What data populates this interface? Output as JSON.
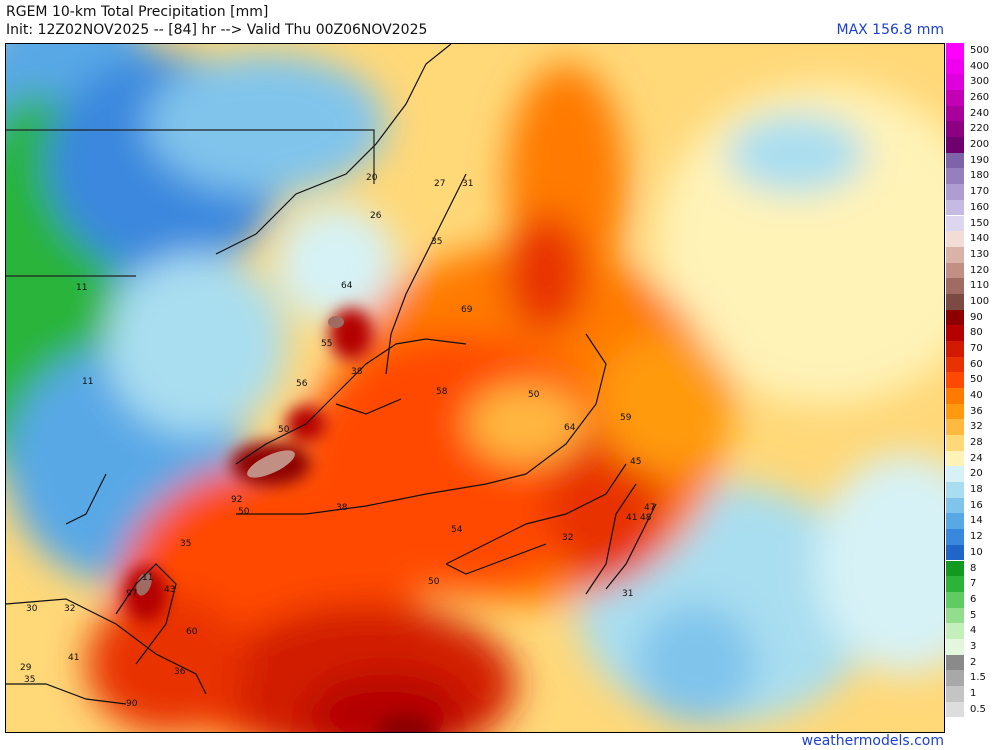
{
  "header": {
    "title": "RGEM 10-km Total Precipitation [mm]",
    "init": "Init: 12Z02NOV2025 -- [84] hr --> Valid Thu 00Z06NOV2025",
    "max": "MAX 156.8 mm"
  },
  "footer": {
    "site": "weathermodels.com"
  },
  "legend": {
    "items": [
      {
        "label": "500",
        "color": "#ff00ff"
      },
      {
        "label": "400",
        "color": "#ee00ee"
      },
      {
        "label": "300",
        "color": "#dd00dd"
      },
      {
        "label": "260",
        "color": "#c400b4"
      },
      {
        "label": "240",
        "color": "#a8009a"
      },
      {
        "label": "220",
        "color": "#8b0082"
      },
      {
        "label": "200",
        "color": "#6e0070"
      },
      {
        "label": "190",
        "color": "#7e63a8"
      },
      {
        "label": "180",
        "color": "#9580bd"
      },
      {
        "label": "170",
        "color": "#ad9dd0"
      },
      {
        "label": "160",
        "color": "#c5bbe2"
      },
      {
        "label": "150",
        "color": "#ddd6ef"
      },
      {
        "label": "140",
        "color": "#f2dcd6"
      },
      {
        "label": "130",
        "color": "#d9b2a8"
      },
      {
        "label": "120",
        "color": "#c18f84"
      },
      {
        "label": "110",
        "color": "#a06b62"
      },
      {
        "label": "100",
        "color": "#7a4a43"
      },
      {
        "label": "90",
        "color": "#8c0000"
      },
      {
        "label": "80",
        "color": "#b40000"
      },
      {
        "label": "70",
        "color": "#d11a00"
      },
      {
        "label": "60",
        "color": "#e83200"
      },
      {
        "label": "50",
        "color": "#ff4a00"
      },
      {
        "label": "40",
        "color": "#ff7a00"
      },
      {
        "label": "36",
        "color": "#ff9a10"
      },
      {
        "label": "32",
        "color": "#ffb840"
      },
      {
        "label": "28",
        "color": "#ffd878"
      },
      {
        "label": "24",
        "color": "#fff3b8"
      },
      {
        "label": "20",
        "color": "#d6f2f6"
      },
      {
        "label": "18",
        "color": "#a9def0"
      },
      {
        "label": "16",
        "color": "#80c4ec"
      },
      {
        "label": "14",
        "color": "#58a8e6"
      },
      {
        "label": "12",
        "color": "#3a88de"
      },
      {
        "label": "10",
        "color": "#1f66c8"
      },
      {
        "label": "8",
        "color": "#129a20"
      },
      {
        "label": "7",
        "color": "#2cb43a"
      },
      {
        "label": "6",
        "color": "#5fcb63"
      },
      {
        "label": "5",
        "color": "#92de8e"
      },
      {
        "label": "4",
        "color": "#c4efbd"
      },
      {
        "label": "3",
        "color": "#e3f7de"
      },
      {
        "label": "2",
        "color": "#8a8a8a"
      },
      {
        "label": "1.5",
        "color": "#a8a8a8"
      },
      {
        "label": "1",
        "color": "#c4c4c4"
      },
      {
        "label": "0.5",
        "color": "#dddddd"
      },
      {
        "label": "",
        "color": "#ffffff"
      }
    ]
  },
  "map": {
    "labels": [
      "11",
      "11",
      "20",
      "26",
      "27",
      "31",
      "35",
      "55",
      "64",
      "69",
      "56",
      "38",
      "58",
      "50",
      "50",
      "59",
      "64",
      "45",
      "41",
      "48",
      "47",
      "32",
      "92",
      "50",
      "38",
      "54",
      "50",
      "31",
      "35",
      "11",
      "97",
      "43",
      "30",
      "32",
      "60",
      "41",
      "29",
      "35",
      "36",
      "90"
    ]
  }
}
